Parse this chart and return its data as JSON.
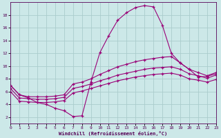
{
  "title": "",
  "xlabel": "Windchill (Refroidissement éolien,°C)",
  "bg_color": "#cce8e8",
  "grid_color": "#aacccc",
  "line_color": "#990077",
  "xlim": [
    0,
    23
  ],
  "ylim": [
    1,
    20
  ],
  "xticks": [
    0,
    1,
    2,
    3,
    4,
    5,
    6,
    7,
    8,
    9,
    10,
    11,
    12,
    13,
    14,
    15,
    16,
    17,
    18,
    19,
    20,
    21,
    22,
    23
  ],
  "yticks": [
    2,
    4,
    6,
    8,
    10,
    12,
    14,
    16,
    18
  ],
  "line1_x": [
    0,
    1,
    2,
    3,
    4,
    5,
    6,
    7,
    8,
    9,
    10,
    11,
    12,
    13,
    14,
    15,
    16,
    17,
    18,
    19,
    20,
    21,
    22,
    23
  ],
  "line1_y": [
    7.0,
    5.5,
    5.0,
    4.3,
    4.0,
    3.4,
    3.0,
    2.1,
    2.2,
    7.5,
    12.1,
    14.8,
    17.2,
    18.4,
    19.2,
    19.5,
    19.3,
    16.4,
    12.0,
    10.5,
    9.5,
    8.3,
    8.4,
    8.8
  ],
  "line2_x": [
    0,
    1,
    2,
    3,
    4,
    5,
    6,
    7,
    8,
    9,
    10,
    11,
    12,
    13,
    14,
    15,
    16,
    17,
    18,
    19,
    20,
    21,
    22,
    23
  ],
  "line2_y": [
    7.0,
    5.5,
    5.2,
    5.2,
    5.2,
    5.3,
    5.5,
    7.2,
    7.5,
    8.0,
    8.7,
    9.3,
    9.9,
    10.3,
    10.7,
    11.0,
    11.2,
    11.4,
    11.5,
    10.5,
    9.5,
    9.0,
    8.5,
    9.0
  ],
  "line3_x": [
    0,
    1,
    2,
    3,
    4,
    5,
    6,
    7,
    8,
    9,
    10,
    11,
    12,
    13,
    14,
    15,
    16,
    17,
    18,
    19,
    20,
    21,
    22,
    23
  ],
  "line3_y": [
    6.5,
    5.0,
    4.9,
    4.8,
    4.8,
    4.9,
    5.1,
    6.5,
    6.8,
    7.2,
    7.7,
    8.1,
    8.6,
    8.9,
    9.2,
    9.5,
    9.7,
    9.8,
    9.9,
    9.5,
    8.8,
    8.5,
    8.1,
    8.6
  ],
  "line4_x": [
    0,
    1,
    2,
    3,
    4,
    5,
    6,
    7,
    8,
    9,
    10,
    11,
    12,
    13,
    14,
    15,
    16,
    17,
    18,
    19,
    20,
    21,
    22,
    23
  ],
  "line4_y": [
    6.0,
    4.5,
    4.4,
    4.3,
    4.3,
    4.4,
    4.6,
    5.8,
    6.1,
    6.5,
    6.9,
    7.3,
    7.7,
    8.0,
    8.3,
    8.5,
    8.7,
    8.8,
    8.9,
    8.6,
    8.0,
    7.8,
    7.5,
    7.9
  ]
}
